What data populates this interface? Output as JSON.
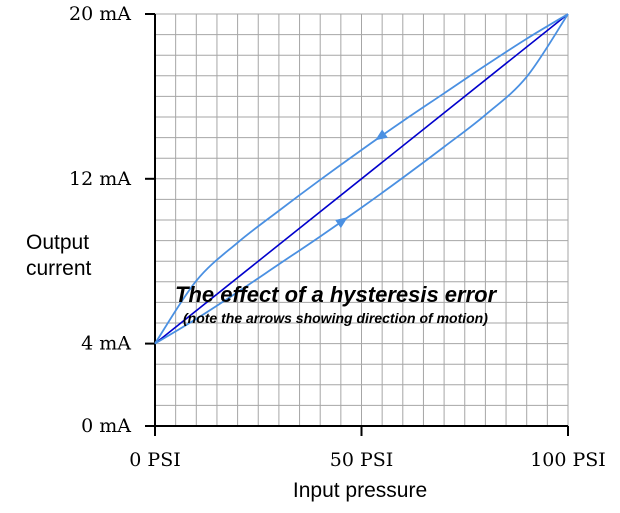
{
  "chart_data": {
    "type": "line",
    "title": "",
    "xlabel": "Input pressure",
    "ylabel": "Output current",
    "xlim": [
      0,
      100
    ],
    "ylim": [
      0,
      20
    ],
    "grid": true,
    "x_ticks": [
      {
        "value": 0,
        "label": "0 PSI"
      },
      {
        "value": 50,
        "label": "50 PSI"
      },
      {
        "value": 100,
        "label": "100 PSI"
      }
    ],
    "y_ticks": [
      {
        "value": 0,
        "label": "0 mA"
      },
      {
        "value": 4,
        "label": "4 mA"
      },
      {
        "value": 12,
        "label": "12 mA"
      },
      {
        "value": 20,
        "label": "20 mA"
      }
    ],
    "annotation": {
      "text": "The effect of a hysteresis error",
      "subtext": "(note the arrows showing direction of motion)"
    },
    "series": [
      {
        "color": "#0000cc",
        "x": [
          0,
          100
        ],
        "y": [
          4,
          20
        ]
      },
      {
        "color": "#4a90e2",
        "direction": "increasing",
        "x": [
          0,
          10,
          20,
          30,
          40,
          50,
          60,
          70,
          80,
          90,
          100
        ],
        "y": [
          4,
          5.2,
          6.5,
          7.85,
          9.2,
          10.6,
          12.05,
          13.55,
          15.1,
          16.95,
          20
        ]
      },
      {
        "color": "#4a90e2",
        "direction": "decreasing",
        "x": [
          100,
          90,
          80,
          70,
          60,
          50,
          40,
          30,
          20,
          10,
          0
        ],
        "y": [
          20,
          18.8,
          17.5,
          16.15,
          14.8,
          13.4,
          11.95,
          10.45,
          8.9,
          7.05,
          4
        ]
      }
    ]
  }
}
